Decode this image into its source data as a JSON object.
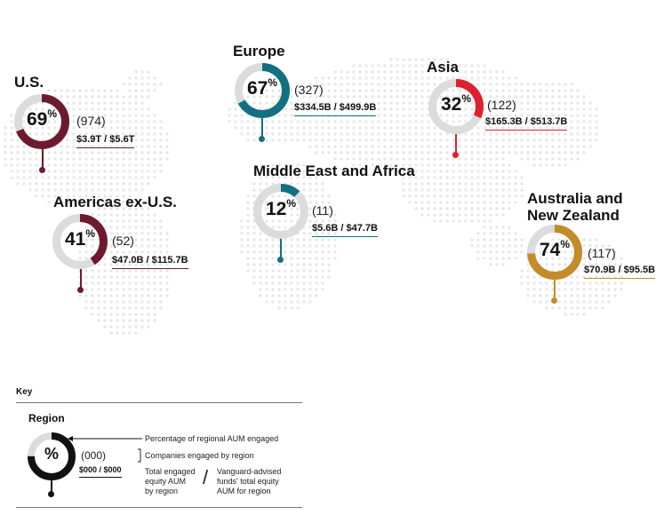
{
  "colors": {
    "us": "#6d1a2f",
    "americas": "#6d1a2f",
    "europe": "#137080",
    "mea": "#137080",
    "asia": "#e0202f",
    "australia": "#c38b2a",
    "track": "#dcdcdc",
    "key": "#111111"
  },
  "regions": {
    "us": {
      "name": "U.S.",
      "pct": 69,
      "pct_label": "69",
      "count": "(974)",
      "aum": "$3.9T / $5.6T"
    },
    "americas": {
      "name": "Americas ex-U.S.",
      "pct": 41,
      "pct_label": "41",
      "count": "(52)",
      "aum": "$47.0B / $115.7B"
    },
    "europe": {
      "name": "Europe",
      "pct": 67,
      "pct_label": "67",
      "count": "(327)",
      "aum": "$334.5B / $499.9B"
    },
    "mea": {
      "name": "Middle East and Africa",
      "pct": 12,
      "pct_label": "12",
      "count": "(11)",
      "aum": "$5.6B / $47.7B"
    },
    "asia": {
      "name": "Asia",
      "pct": 32,
      "pct_label": "32",
      "count": "(122)",
      "aum": "$165.3B / $513.7B"
    },
    "australia": {
      "name_line1": "Australia and",
      "name_line2": "New Zealand",
      "pct": 74,
      "pct_label": "74",
      "count": "(117)",
      "aum": "$70.9B / $95.5B"
    }
  },
  "key": {
    "title": "Key",
    "region_label": "Region",
    "pct_symbol": "%",
    "sup_symbol": "%",
    "count": "(000)",
    "aum": "$000 / $000",
    "pct_desc": "Percentage of regional AUM engaged",
    "companies_desc": "Companies engaged by region",
    "total_line1": "Total engaged",
    "total_line2": "equity AUM",
    "total_line3": "by region",
    "slash": "/",
    "funds_line1": "Vanguard-advised",
    "funds_line2": "funds' total equity",
    "funds_line3": "AUM for region"
  }
}
